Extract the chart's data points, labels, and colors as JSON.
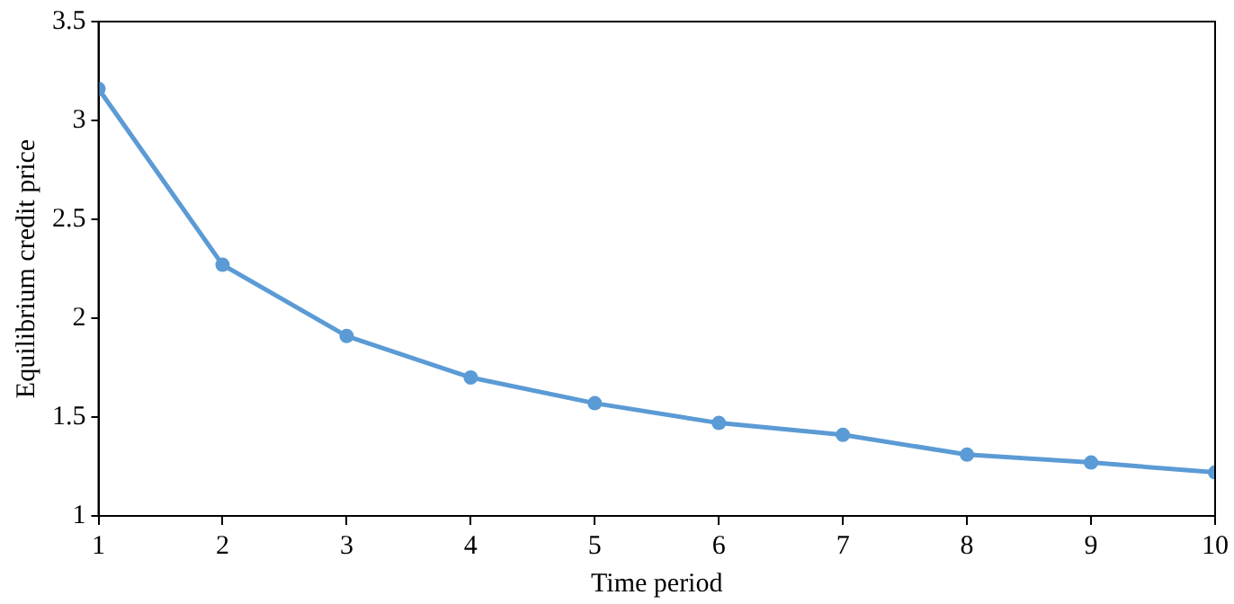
{
  "chart_data": {
    "type": "line",
    "xlabel": "Time period",
    "ylabel": "Equilibrium credit price",
    "x": [
      1,
      2,
      3,
      4,
      5,
      6,
      7,
      8,
      9,
      10
    ],
    "series": [
      {
        "color": "#5b9bd5",
        "values": [
          3.16,
          2.27,
          1.91,
          1.7,
          1.57,
          1.47,
          1.41,
          1.31,
          1.27,
          1.22
        ]
      }
    ],
    "xlim": [
      1,
      10
    ],
    "xticks": [
      1,
      2,
      3,
      4,
      5,
      6,
      7,
      8,
      9,
      10
    ],
    "ylim": [
      1,
      3.5
    ],
    "yticks": [
      1,
      1.5,
      2,
      2.5,
      3,
      3.5
    ],
    "grid": false,
    "legend": false,
    "marker": "circle",
    "line_style": "solid"
  }
}
